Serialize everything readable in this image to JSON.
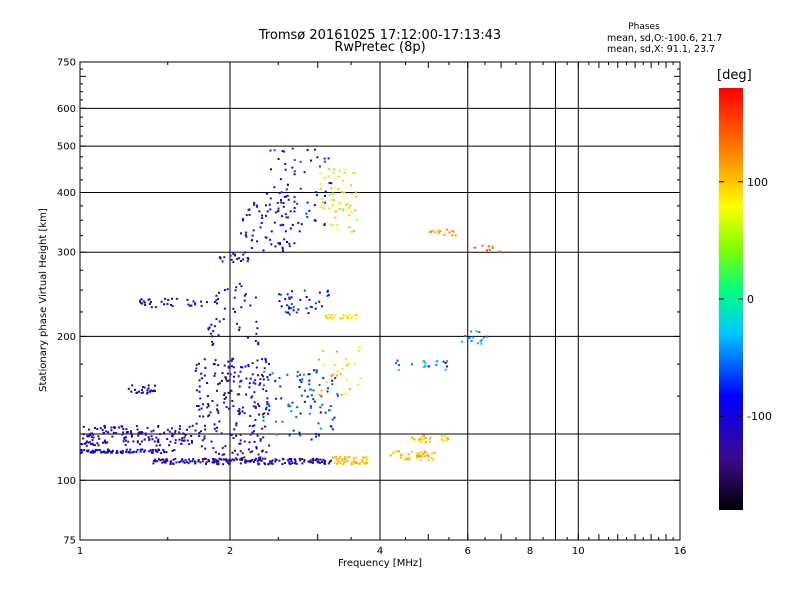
{
  "title_line1": "Tromsø 20161025 17:12:00-17:13:43",
  "title_line2": "RwPretec (8p)",
  "stats": {
    "heading": "Phases",
    "line_o": "mean, sd,O:-100.6, 21.7",
    "line_x": "mean, sd,X:  91.1, 23.7"
  },
  "colorbar": {
    "unit": "[deg]",
    "range": [
      -180,
      180
    ],
    "ticks": [
      {
        "value": 100,
        "label": "100"
      },
      {
        "value": 0,
        "label": "0"
      },
      {
        "value": -100,
        "label": "-100"
      }
    ]
  },
  "chart_data": {
    "type": "scatter",
    "xlabel": "Frequency [MHz]",
    "ylabel": "Stationary phase Virtual Height [km]",
    "xscale": "log",
    "yscale": "log",
    "xlim": [
      1,
      16
    ],
    "ylim": [
      75,
      750
    ],
    "grid": true,
    "x_major_ticks": [
      {
        "value": 1,
        "label": "1"
      },
      {
        "value": 2,
        "label": "2"
      },
      {
        "value": 4,
        "label": "4"
      },
      {
        "value": 6,
        "label": "6"
      },
      {
        "value": 8,
        "label": "8"
      },
      {
        "value": 10,
        "label": "10"
      },
      {
        "value": 16,
        "label": "16"
      }
    ],
    "x_grid": [
      2,
      4,
      6,
      8,
      9,
      10
    ],
    "y_major_ticks": [
      {
        "value": 75,
        "label": "75"
      },
      {
        "value": 100,
        "label": "100"
      },
      {
        "value": 200,
        "label": "200"
      },
      {
        "value": 300,
        "label": "300"
      },
      {
        "value": 400,
        "label": "400"
      },
      {
        "value": 500,
        "label": "500"
      },
      {
        "value": 600,
        "label": "600"
      },
      {
        "value": 750,
        "label": "750"
      }
    ],
    "y_grid": [
      100,
      125,
      200,
      300,
      400,
      500,
      600
    ],
    "clusters": [
      {
        "f": [
          1.0,
          1.55
        ],
        "h": [
          114,
          116
        ],
        "phase": [
          -115,
          -85
        ],
        "n": 80
      },
      {
        "f": [
          1.0,
          1.7
        ],
        "h": [
          118,
          130
        ],
        "phase": [
          -140,
          -95
        ],
        "n": 150
      },
      {
        "f": [
          1.4,
          3.2
        ],
        "h": [
          108,
          111
        ],
        "phase": [
          -140,
          -95
        ],
        "n": 180
      },
      {
        "f": [
          1.7,
          2.4
        ],
        "h": [
          110,
          180
        ],
        "phase": [
          -140,
          -90
        ],
        "n": 220
      },
      {
        "f": [
          1.25,
          1.45
        ],
        "h": [
          152,
          158
        ],
        "phase": [
          -115,
          -90
        ],
        "n": 25
      },
      {
        "f": [
          1.3,
          1.9
        ],
        "h": [
          230,
          240
        ],
        "phase": [
          -130,
          -100
        ],
        "n": 35
      },
      {
        "f": [
          1.8,
          2.3
        ],
        "h": [
          190,
          260
        ],
        "phase": [
          -130,
          -95
        ],
        "n": 45
      },
      {
        "f": [
          1.9,
          2.2
        ],
        "h": [
          285,
          300
        ],
        "phase": [
          -130,
          -110
        ],
        "n": 20
      },
      {
        "f": [
          2.1,
          2.7
        ],
        "h": [
          300,
          400
        ],
        "phase": [
          -130,
          -90
        ],
        "n": 60
      },
      {
        "f": [
          2.4,
          3.2
        ],
        "h": [
          330,
          500
        ],
        "phase": [
          -110,
          -60
        ],
        "n": 70
      },
      {
        "f": [
          2.5,
          3.2
        ],
        "h": [
          220,
          250
        ],
        "phase": [
          -100,
          -60
        ],
        "n": 40
      },
      {
        "f": [
          2.3,
          3.3
        ],
        "h": [
          120,
          170
        ],
        "phase": [
          -90,
          -40
        ],
        "n": 90
      },
      {
        "f": [
          3.0,
          3.6
        ],
        "h": [
          330,
          450
        ],
        "phase": [
          40,
          110
        ],
        "n": 60
      },
      {
        "f": [
          3.1,
          3.6
        ],
        "h": [
          218,
          222
        ],
        "phase": [
          80,
          105
        ],
        "n": 25
      },
      {
        "f": [
          3.2,
          3.8
        ],
        "h": [
          108,
          112
        ],
        "phase": [
          90,
          115
        ],
        "n": 50
      },
      {
        "f": [
          3.0,
          3.7
        ],
        "h": [
          150,
          190
        ],
        "phase": [
          60,
          120
        ],
        "n": 30
      },
      {
        "f": [
          4.2,
          5.2
        ],
        "h": [
          110,
          115
        ],
        "phase": [
          90,
          120
        ],
        "n": 40
      },
      {
        "f": [
          4.6,
          5.5
        ],
        "h": [
          120,
          124
        ],
        "phase": [
          90,
          120
        ],
        "n": 25
      },
      {
        "f": [
          4.3,
          5.5
        ],
        "h": [
          170,
          178
        ],
        "phase": [
          -80,
          -20
        ],
        "n": 20
      },
      {
        "f": [
          5.0,
          5.8
        ],
        "h": [
          325,
          335
        ],
        "phase": [
          100,
          130
        ],
        "n": 15
      },
      {
        "f": [
          5.8,
          7.0
        ],
        "h": [
          190,
          205
        ],
        "phase": [
          -60,
          -20
        ],
        "n": 15
      },
      {
        "f": [
          5.8,
          7.0
        ],
        "h": [
          300,
          310
        ],
        "phase": [
          120,
          170
        ],
        "n": 8
      }
    ]
  }
}
